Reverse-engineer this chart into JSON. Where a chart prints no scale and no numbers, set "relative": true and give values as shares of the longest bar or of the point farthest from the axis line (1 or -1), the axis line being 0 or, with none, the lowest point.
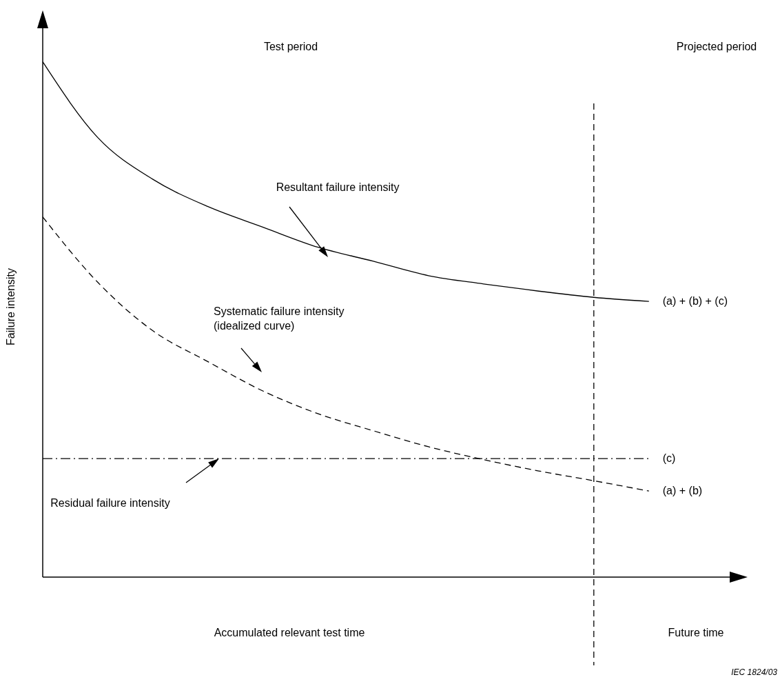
{
  "chart_data": {
    "type": "line",
    "relative": true,
    "ylabel": "Failure intensity",
    "tick_labels": false,
    "marker": "none",
    "categories": [
      null,
      null,
      null,
      null,
      null,
      null,
      null,
      null,
      null,
      null,
      null,
      null
    ],
    "series": [
      {
        "name": "(a) + (b) + (c)",
        "color": "#000000",
        "line_style": "solid",
        "values": [
          1.0,
          0.853,
          0.772,
          0.719,
          0.679,
          0.64,
          0.613,
          0.585,
          0.569,
          0.555,
          0.543,
          0.535
        ]
      },
      {
        "name": "(a) + (b)",
        "color": "#000000",
        "line_style": "dashed",
        "values": [
          0.699,
          0.572,
          0.478,
          0.418,
          0.361,
          0.317,
          0.284,
          0.253,
          0.228,
          0.206,
          0.187,
          0.167
        ]
      },
      {
        "name": "(c)",
        "color": "#000000",
        "line_style": "dashdot",
        "values": [
          0.23,
          0.23,
          0.23,
          0.23,
          0.23,
          0.23,
          0.23,
          0.23,
          0.23,
          0.23,
          0.23,
          0.23
        ]
      }
    ],
    "annotations": [
      "Test period",
      "Projected period",
      "Resultant failure intensity",
      "Systematic failure intensity\n(idealized curve)",
      "Residual failure intensity",
      "Accumulated relevant test time",
      "Future time",
      "IEC  1824/03"
    ]
  }
}
